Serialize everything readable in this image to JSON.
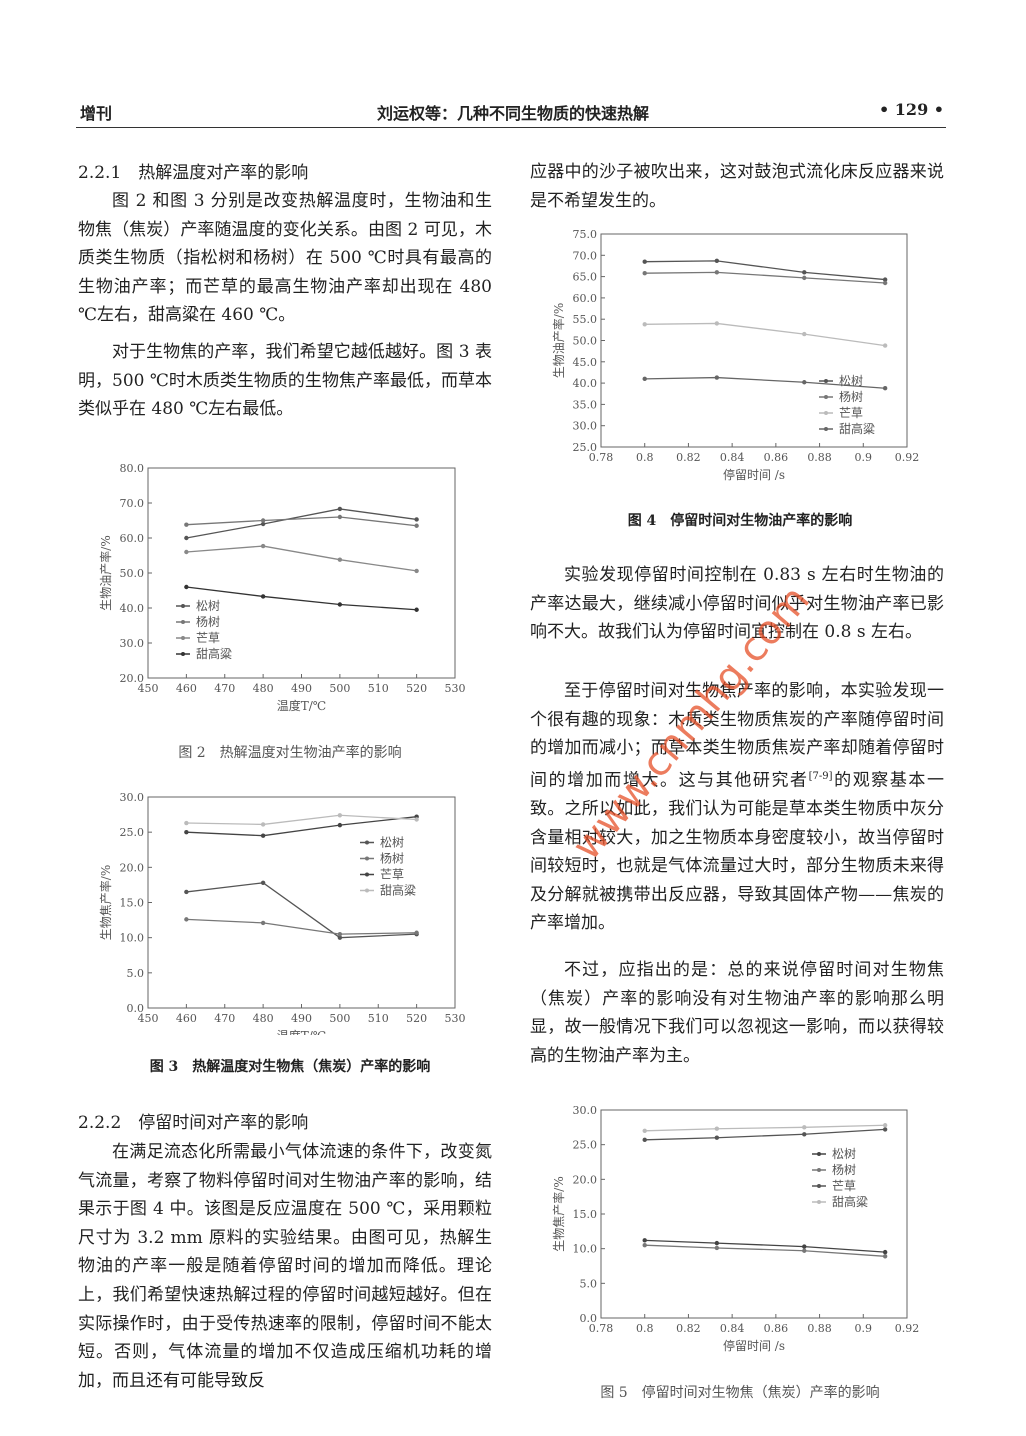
{
  "header": {
    "left": "增刊",
    "title": "刘运权等：几种不同生物质的快速热解",
    "page": "• 129 •"
  },
  "headings": [
    "2.2.1　热解温度对产率的影响",
    "2.2.2　停留时间对产率的影响"
  ],
  "paragraphs": [
    "图 2 和图 3 分别是改变热解温度时，生物油和生物焦（焦炭）产率随温度的变化关系。由图 2 可见，木质类生物质（指松树和杨树）在 500 ℃时具有最高的生物油产率；而芒草的最高生物油产率却出现在 480 ℃左右，甜高粱在 460 ℃。",
    "对于生物焦的产率，我们希望它越低越好。图 3 表明，500 ℃时木质类生物质的生物焦产率最低，而草本类似乎在 480 ℃左右最低。",
    "在满足流态化所需最小气体流速的条件下，改变氮气流量，考察了物料停留时间对生物油产率的影响，结果示于图 4 中。该图是反应温度在 500 ℃，采用颗粒尺寸为 3.2 mm 原料的实验结果。由图可见，热解生物油的产率一般是随着停留时间的增加而降低。理论上，我们希望快速热解过程的停留时间越短越好。但在实际操作时，由于受传热速率的限制，停留时间不能太短。否则，气体流量的增加不仅造成压缩机功耗的增加，而且还有可能导致反",
    "应器中的沙子被吹出来，这对鼓泡式流化床反应器来说是不希望发生的。",
    "实验发现停留时间控制在 0.83 s 左右时生物油的产率达最大，继续减小停留时间似乎对生物油产率已影响不大。故我们认为停留时间宜控制在 0.8 s 左右。",
    "不过，应指出的是：总的来说停留时间对生物焦（焦炭）产率的影响没有对生物油产率的影响那么明显，故一般情况下我们可以忽视这一影响，而以获得较高的生物油产率为主。"
  ],
  "cited_paragraph": {
    "text": "至于停留时间对生物焦产率的影响，本实验发现一个很有趣的现象：木质类生物质焦炭的产率随停留时间的增加而减小；而草本类生物质焦炭产率却随着停留时间的增加而增大。这与其他研究者",
    "citation": "[7-9]",
    "text_end": "的观察基本一致。之所以如此，我们认为可能是草本类生物质中灰分含量相对较大，加之生物质本身密度较小，故当停留时间较短时，也就是气体流量过大时，部分生物质未来得及分解就被携带出反应器，导致其固体产物——焦炭的产率增加。"
  },
  "watermark": "www.cnmhg.com",
  "chart_data": [
    {
      "type": "line",
      "caption": "图 2　热解温度对生物油产率的影响",
      "xlabel": "温度T/℃",
      "ylabel": "生物油产率/%",
      "x": [
        460,
        480,
        500,
        520
      ],
      "series": [
        {
          "name": "松树",
          "color": "#555555",
          "values": [
            60,
            64,
            68.3,
            65.3
          ]
        },
        {
          "name": "杨树",
          "color": "#777777",
          "values": [
            63.8,
            65,
            66,
            63.5
          ]
        },
        {
          "name": "芒草",
          "color": "#888888",
          "values": [
            56,
            57.7,
            53.8,
            50.6
          ]
        },
        {
          "name": "甜高粱",
          "color": "#333333",
          "values": [
            46,
            43.3,
            41,
            39.5
          ]
        }
      ],
      "xlim": [
        450,
        530
      ],
      "xticks": [
        450,
        460,
        470,
        480,
        490,
        500,
        510,
        520,
        530
      ],
      "ylim": [
        20,
        80
      ],
      "yticks": [
        {
          "value": 20,
          "label": "20.0"
        },
        {
          "value": 30,
          "label": "30.0"
        },
        {
          "value": 40,
          "label": "40.0"
        },
        {
          "value": 50,
          "label": "50.0"
        },
        {
          "value": 60,
          "label": "60.0"
        },
        {
          "value": 70,
          "label": "70.0"
        },
        {
          "value": 80,
          "label": "80.0"
        }
      ],
      "legend": "lower left"
    },
    {
      "type": "line",
      "caption": "图 3　热解温度对生物焦（焦炭）产率的影响",
      "xlabel": "温度T/℃",
      "ylabel": "生物焦产率/%",
      "x": [
        460,
        480,
        500,
        520
      ],
      "series": [
        {
          "name": "松树",
          "color": "#555555",
          "values": [
            16.5,
            17.8,
            10,
            10.5
          ]
        },
        {
          "name": "杨树",
          "color": "#777777",
          "values": [
            12.6,
            12.1,
            10.5,
            10.7
          ]
        },
        {
          "name": "芒草",
          "color": "#444444",
          "values": [
            25,
            24.5,
            26,
            27.2
          ]
        },
        {
          "name": "甜高粱",
          "color": "#bbbbbb",
          "values": [
            26.3,
            26.1,
            27.4,
            26.8
          ]
        }
      ],
      "xlim": [
        450,
        530
      ],
      "xticks": [
        450,
        460,
        470,
        480,
        490,
        500,
        510,
        520,
        530
      ],
      "ylim": [
        0,
        30
      ],
      "yticks": [
        {
          "value": 0,
          "label": "0.0"
        },
        {
          "value": 5,
          "label": "5.0"
        },
        {
          "value": 10,
          "label": "10.0"
        },
        {
          "value": 15,
          "label": "15.0"
        },
        {
          "value": 20,
          "label": "20.0"
        },
        {
          "value": 25,
          "label": "25.0"
        },
        {
          "value": 30,
          "label": "30.0"
        }
      ],
      "legend": "center right"
    },
    {
      "type": "line",
      "caption": "图 4　停留时间对生物油产率的影响",
      "xlabel": "停留时间 /s",
      "ylabel": "生物油产率/%",
      "x": [
        0.8,
        0.833,
        0.873,
        0.91
      ],
      "series": [
        {
          "name": "松树",
          "color": "#555555",
          "values": [
            68.5,
            68.7,
            66,
            64.3
          ]
        },
        {
          "name": "杨树",
          "color": "#777777",
          "values": [
            65.8,
            66,
            64.7,
            63.5
          ]
        },
        {
          "name": "芒草",
          "color": "#bbbbbb",
          "values": [
            53.8,
            54,
            51.5,
            48.8
          ]
        },
        {
          "name": "甜高粱",
          "color": "#666666",
          "values": [
            41,
            41.3,
            40.2,
            38.8
          ]
        }
      ],
      "xlim": [
        0.78,
        0.92
      ],
      "xticks": [
        0.78,
        0.8,
        0.82,
        0.84,
        0.86,
        0.88,
        0.9,
        0.92
      ],
      "ylim": [
        25,
        75
      ],
      "yticks": [
        {
          "value": 25,
          "label": "25.0"
        },
        {
          "value": 30,
          "label": "30.0"
        },
        {
          "value": 35,
          "label": "35.0"
        },
        {
          "value": 40,
          "label": "40.0"
        },
        {
          "value": 45,
          "label": "45.0"
        },
        {
          "value": 50,
          "label": "50.0"
        },
        {
          "value": 55,
          "label": "55.0"
        },
        {
          "value": 60,
          "label": "60.0"
        },
        {
          "value": 65,
          "label": "65.0"
        },
        {
          "value": 70,
          "label": "70.0"
        },
        {
          "value": 75,
          "label": "75.0"
        }
      ],
      "legend": "lower right"
    },
    {
      "type": "line",
      "caption": "图 5　停留时间对生物焦（焦炭）产率的影响",
      "xlabel": "停留时间 /s",
      "ylabel": "生物焦产率/%",
      "x": [
        0.8,
        0.833,
        0.873,
        0.91
      ],
      "series": [
        {
          "name": "松树",
          "color": "#444444",
          "values": [
            11.2,
            10.8,
            10.3,
            9.5
          ]
        },
        {
          "name": "杨树",
          "color": "#777777",
          "values": [
            10.5,
            10.1,
            9.7,
            8.9
          ]
        },
        {
          "name": "芒草",
          "color": "#555555",
          "values": [
            25.7,
            26,
            26.5,
            27.2
          ]
        },
        {
          "name": "甜高粱",
          "color": "#bbbbbb",
          "values": [
            27,
            27.3,
            27.5,
            27.8
          ]
        }
      ],
      "xlim": [
        0.78,
        0.92
      ],
      "xticks": [
        0.78,
        0.8,
        0.82,
        0.84,
        0.86,
        0.88,
        0.9,
        0.92
      ],
      "ylim": [
        0,
        30
      ],
      "yticks": [
        {
          "value": 0,
          "label": "0.0"
        },
        {
          "value": 5,
          "label": "5.0"
        },
        {
          "value": 10,
          "label": "10.0"
        },
        {
          "value": 15,
          "label": "15.0"
        },
        {
          "value": 20,
          "label": "20.0"
        },
        {
          "value": 25,
          "label": "25.0"
        },
        {
          "value": 30,
          "label": "30.0"
        }
      ],
      "legend": "center right"
    }
  ]
}
